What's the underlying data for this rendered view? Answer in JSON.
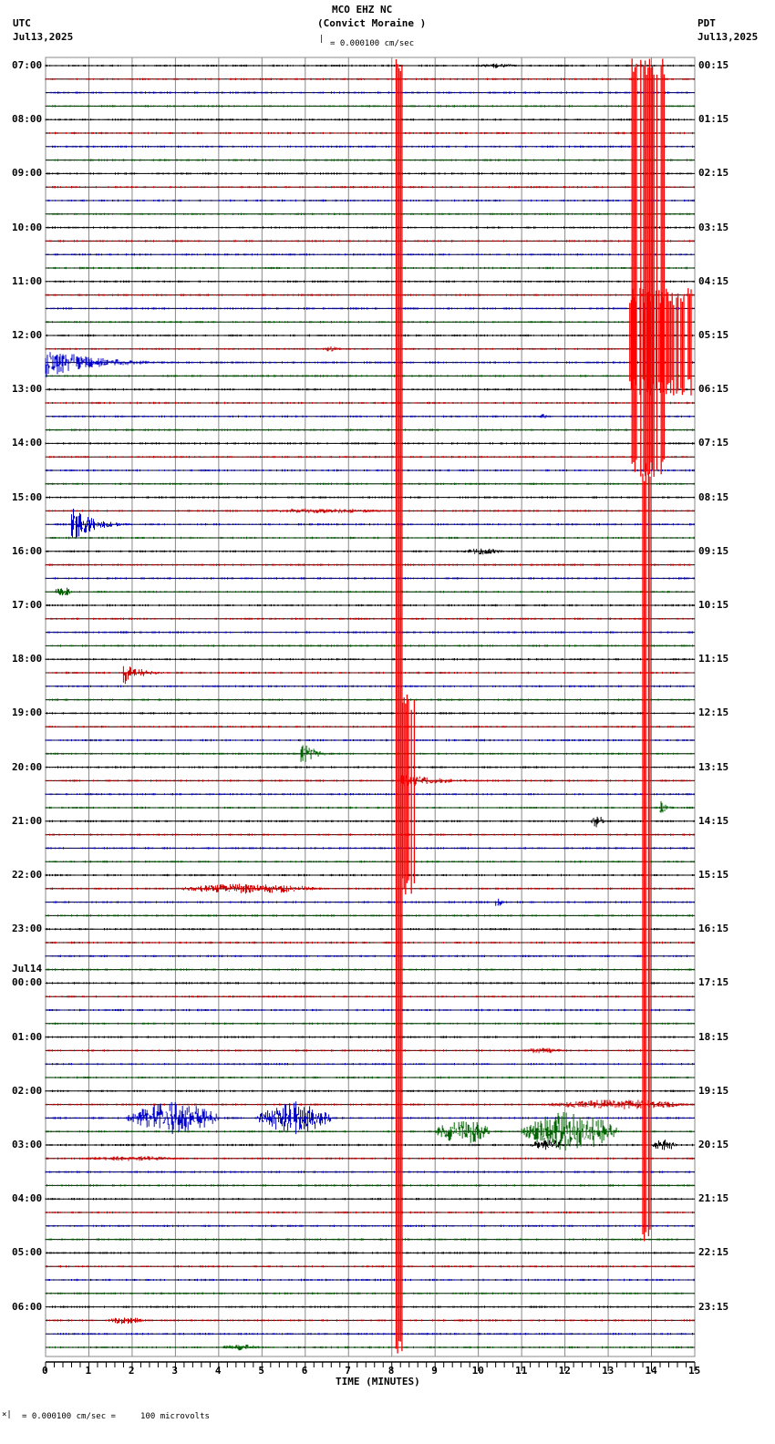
{
  "header": {
    "station": "MCO EHZ NC",
    "site": "(Convict Moraine )",
    "scale": "= 0.000100 cm/sec",
    "left_tz": "UTC",
    "left_date": "Jul13,2025",
    "right_tz": "PDT",
    "right_date": "Jul13,2025"
  },
  "footer": {
    "scale_note": "= 0.000100 cm/sec =     100 microvolts",
    "scale_prefix": "x"
  },
  "chart_data": {
    "type": "line",
    "title": "MCO EHZ NC (Convict Moraine )",
    "xlabel": "TIME (MINUTES)",
    "ylabel": "",
    "xlim": [
      0,
      15
    ],
    "x_ticks": [
      0,
      1,
      2,
      3,
      4,
      5,
      6,
      7,
      8,
      9,
      10,
      11,
      12,
      13,
      14,
      15
    ],
    "grid": true,
    "trace_colors": [
      "#000000",
      "#d00000",
      "#0000c8",
      "#006400"
    ],
    "traces_per_hour": 4,
    "num_traces": 96,
    "left_labels": [
      {
        "row": 0,
        "text": "07:00"
      },
      {
        "row": 4,
        "text": "08:00"
      },
      {
        "row": 8,
        "text": "09:00"
      },
      {
        "row": 12,
        "text": "10:00"
      },
      {
        "row": 16,
        "text": "11:00"
      },
      {
        "row": 20,
        "text": "12:00"
      },
      {
        "row": 24,
        "text": "13:00"
      },
      {
        "row": 28,
        "text": "14:00"
      },
      {
        "row": 32,
        "text": "15:00"
      },
      {
        "row": 36,
        "text": "16:00"
      },
      {
        "row": 40,
        "text": "17:00"
      },
      {
        "row": 44,
        "text": "18:00"
      },
      {
        "row": 48,
        "text": "19:00"
      },
      {
        "row": 52,
        "text": "20:00"
      },
      {
        "row": 56,
        "text": "21:00"
      },
      {
        "row": 60,
        "text": "22:00"
      },
      {
        "row": 64,
        "text": "23:00"
      },
      {
        "row": 68,
        "text": "00:00",
        "date": "Jul14"
      },
      {
        "row": 72,
        "text": "01:00"
      },
      {
        "row": 76,
        "text": "02:00"
      },
      {
        "row": 80,
        "text": "03:00"
      },
      {
        "row": 84,
        "text": "04:00"
      },
      {
        "row": 88,
        "text": "05:00"
      },
      {
        "row": 92,
        "text": "06:00"
      }
    ],
    "right_labels": [
      {
        "row": 0,
        "text": "00:15"
      },
      {
        "row": 4,
        "text": "01:15"
      },
      {
        "row": 8,
        "text": "02:15"
      },
      {
        "row": 12,
        "text": "03:15"
      },
      {
        "row": 16,
        "text": "04:15"
      },
      {
        "row": 20,
        "text": "05:15"
      },
      {
        "row": 24,
        "text": "06:15"
      },
      {
        "row": 28,
        "text": "07:15"
      },
      {
        "row": 32,
        "text": "08:15"
      },
      {
        "row": 36,
        "text": "09:15"
      },
      {
        "row": 40,
        "text": "10:15"
      },
      {
        "row": 44,
        "text": "11:15"
      },
      {
        "row": 48,
        "text": "12:15"
      },
      {
        "row": 52,
        "text": "13:15"
      },
      {
        "row": 56,
        "text": "14:15"
      },
      {
        "row": 60,
        "text": "15:15"
      },
      {
        "row": 64,
        "text": "16:15"
      },
      {
        "row": 68,
        "text": "17:15"
      },
      {
        "row": 72,
        "text": "18:15"
      },
      {
        "row": 76,
        "text": "19:15"
      },
      {
        "row": 80,
        "text": "20:15"
      },
      {
        "row": 84,
        "text": "21:15"
      },
      {
        "row": 88,
        "text": "22:15"
      },
      {
        "row": 92,
        "text": "23:15"
      }
    ],
    "events": [
      {
        "row": 0,
        "start": 10.0,
        "end": 10.9,
        "amp": 4
      },
      {
        "row": 21,
        "start": 6.3,
        "end": 6.9,
        "amp": 4
      },
      {
        "row": 22,
        "start": 0.0,
        "end": 3.2,
        "amp": 24,
        "decay": true
      },
      {
        "row": 26,
        "start": 11.4,
        "end": 11.6,
        "amp": 4
      },
      {
        "row": 33,
        "start": 4.8,
        "end": 8.0,
        "amp": 4
      },
      {
        "row": 34,
        "start": 0.6,
        "end": 2.0,
        "amp": 28,
        "decay": true
      },
      {
        "row": 36,
        "start": 9.6,
        "end": 10.6,
        "amp": 5
      },
      {
        "row": 39,
        "start": 0.2,
        "end": 0.6,
        "amp": 9
      },
      {
        "row": 45,
        "start": 1.8,
        "end": 2.9,
        "amp": 20,
        "decay": true
      },
      {
        "row": 51,
        "start": 5.9,
        "end": 6.6,
        "amp": 28,
        "decay": true
      },
      {
        "row": 53,
        "start": 8.2,
        "end": 10.8,
        "amp": 12,
        "decay": true
      },
      {
        "row": 56,
        "start": 12.6,
        "end": 12.9,
        "amp": 10
      },
      {
        "row": 55,
        "start": 14.2,
        "end": 14.6,
        "amp": 14,
        "decay": true
      },
      {
        "row": 61,
        "start": 3.0,
        "end": 6.4,
        "amp": 8
      },
      {
        "row": 62,
        "start": 10.4,
        "end": 10.7,
        "amp": 16,
        "decay": true
      },
      {
        "row": 73,
        "start": 11.0,
        "end": 12.0,
        "amp": 5
      },
      {
        "row": 78,
        "start": 1.9,
        "end": 4.0,
        "amp": 26
      },
      {
        "row": 78,
        "start": 4.9,
        "end": 6.6,
        "amp": 26
      },
      {
        "row": 77,
        "start": 11.5,
        "end": 14.9,
        "amp": 8
      },
      {
        "row": 79,
        "start": 9.0,
        "end": 10.3,
        "amp": 20
      },
      {
        "row": 79,
        "start": 11.0,
        "end": 13.2,
        "amp": 32
      },
      {
        "row": 80,
        "start": 11.2,
        "end": 12.0,
        "amp": 10
      },
      {
        "row": 80,
        "start": 14.0,
        "end": 14.6,
        "amp": 10
      },
      {
        "row": 81,
        "start": 0.8,
        "end": 3.2,
        "amp": 4
      },
      {
        "row": 93,
        "start": 1.4,
        "end": 2.3,
        "amp": 6
      },
      {
        "row": 95,
        "start": 4.0,
        "end": 5.0,
        "amp": 5
      }
    ],
    "saturated_red_bands": [
      {
        "start": 8.1,
        "end": 8.25,
        "row_from": 0,
        "row_to": 95
      },
      {
        "start": 8.25,
        "end": 8.55,
        "row_from": 47,
        "row_to": 61
      },
      {
        "start": 13.55,
        "end": 14.3,
        "row_from": 0,
        "row_to": 30
      },
      {
        "start": 13.5,
        "end": 14.95,
        "row_from": 17,
        "row_to": 24
      },
      {
        "start": 13.8,
        "end": 14.0,
        "row_from": 30,
        "row_to": 87
      }
    ]
  }
}
